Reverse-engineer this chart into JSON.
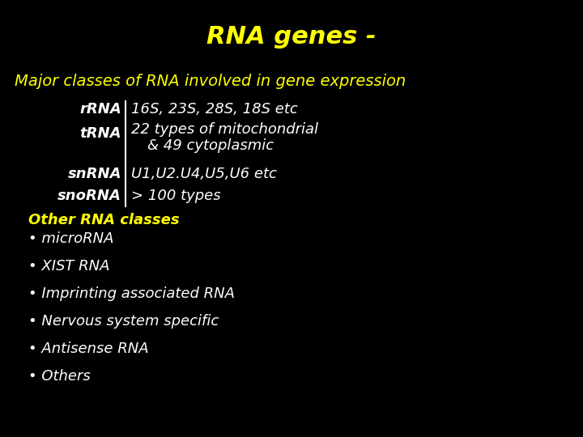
{
  "title": "RNA genes -",
  "subtitle": "Major classes of RNA involved in gene expression",
  "bg_color": "#000000",
  "title_color": "#FFFF00",
  "subtitle_color": "#FFFF00",
  "white_color": "#FFFFFF",
  "red_line_color": "#CC0000",
  "other_title": "Other RNA classes",
  "bullets": [
    "microRNA",
    "XIST RNA",
    "Imprinting associated RNA",
    "Nervous system specific",
    "Antisense RNA",
    "Others"
  ]
}
